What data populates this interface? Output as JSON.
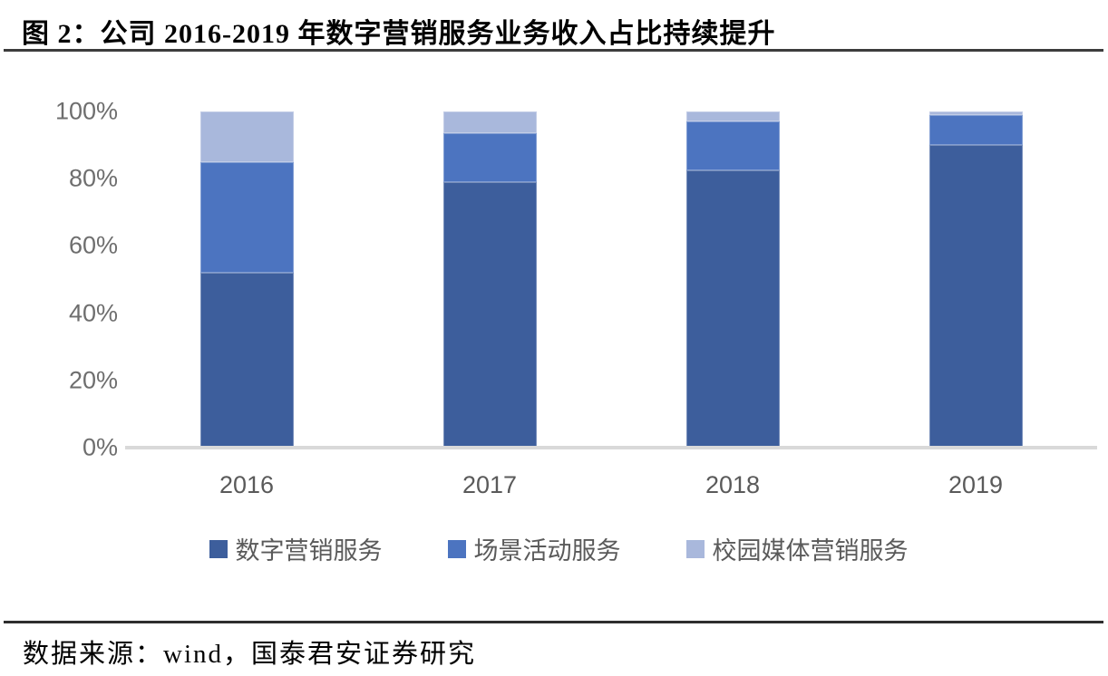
{
  "page": {
    "title": "图 2：公司 2016-2019 年数字营销服务业务收入占比持续提升",
    "source": "数据来源：wind，国泰君安证券研究"
  },
  "chart_data": {
    "type": "bar",
    "stacked": true,
    "percent_stacked": true,
    "title": "公司 2016-2019 年数字营销服务业务收入占比持续提升",
    "categories": [
      "2016",
      "2017",
      "2018",
      "2019"
    ],
    "series": [
      {
        "name": "数字营销服务",
        "color": "#3D5E9C",
        "values": [
          52,
          79,
          82.5,
          90
        ]
      },
      {
        "name": "场景活动服务",
        "color": "#4C74C0",
        "values": [
          33,
          14.5,
          14.5,
          9
        ]
      },
      {
        "name": "校园媒体营销服务",
        "color": "#A9B8DC",
        "values": [
          15,
          6.5,
          3,
          1
        ]
      }
    ],
    "xlabel": "",
    "ylabel": "",
    "ylim": [
      0,
      100
    ],
    "yticks": [
      "0%",
      "20%",
      "40%",
      "60%",
      "80%",
      "100%"
    ],
    "grid": false,
    "legend_position": "bottom",
    "axis_line_color": "#d9d9d9",
    "tick_label_color": "#6e6e6e"
  }
}
